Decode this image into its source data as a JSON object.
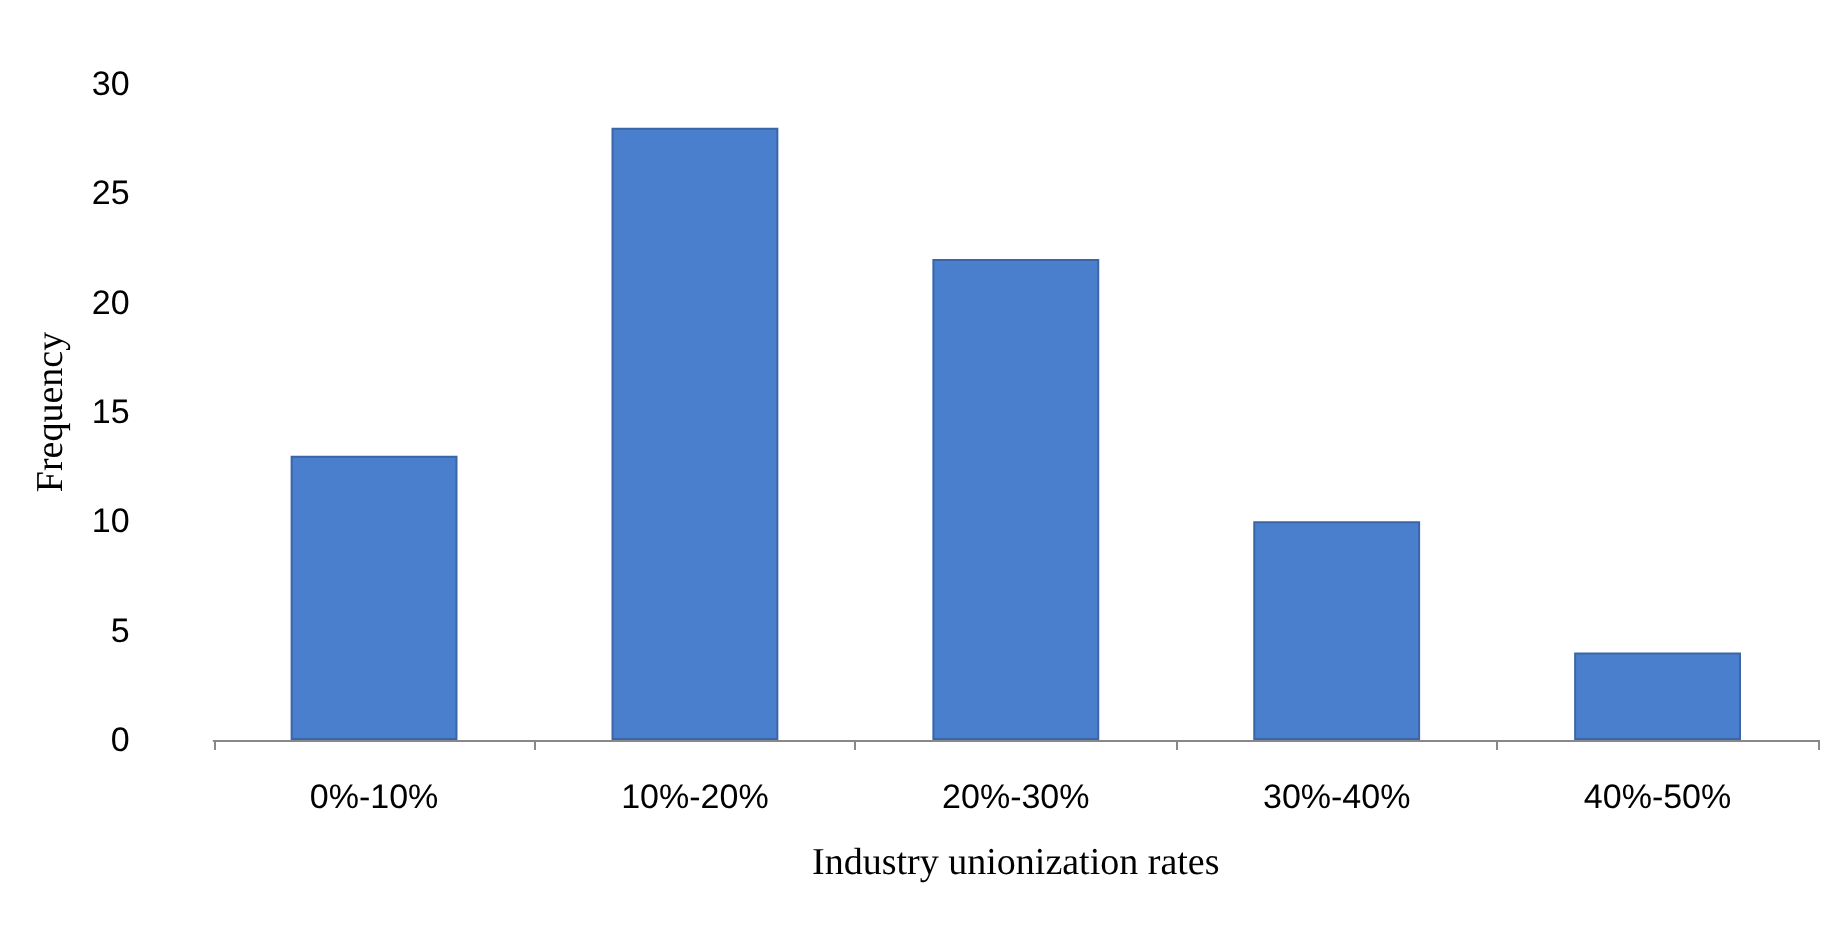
{
  "chart_data": {
    "type": "bar",
    "xlabel": "Industry unionization rates",
    "ylabel": "Frequency",
    "categories": [
      "0%-10%",
      "10%-20%",
      "20%-30%",
      "30%-40%",
      "40%-50%"
    ],
    "values": [
      13,
      28,
      22,
      10,
      4
    ],
    "color": "#4a7fcd",
    "ylim": [
      0,
      30
    ],
    "yticks": [
      0,
      5,
      10,
      15,
      20,
      25,
      30
    ],
    "grid": false
  }
}
